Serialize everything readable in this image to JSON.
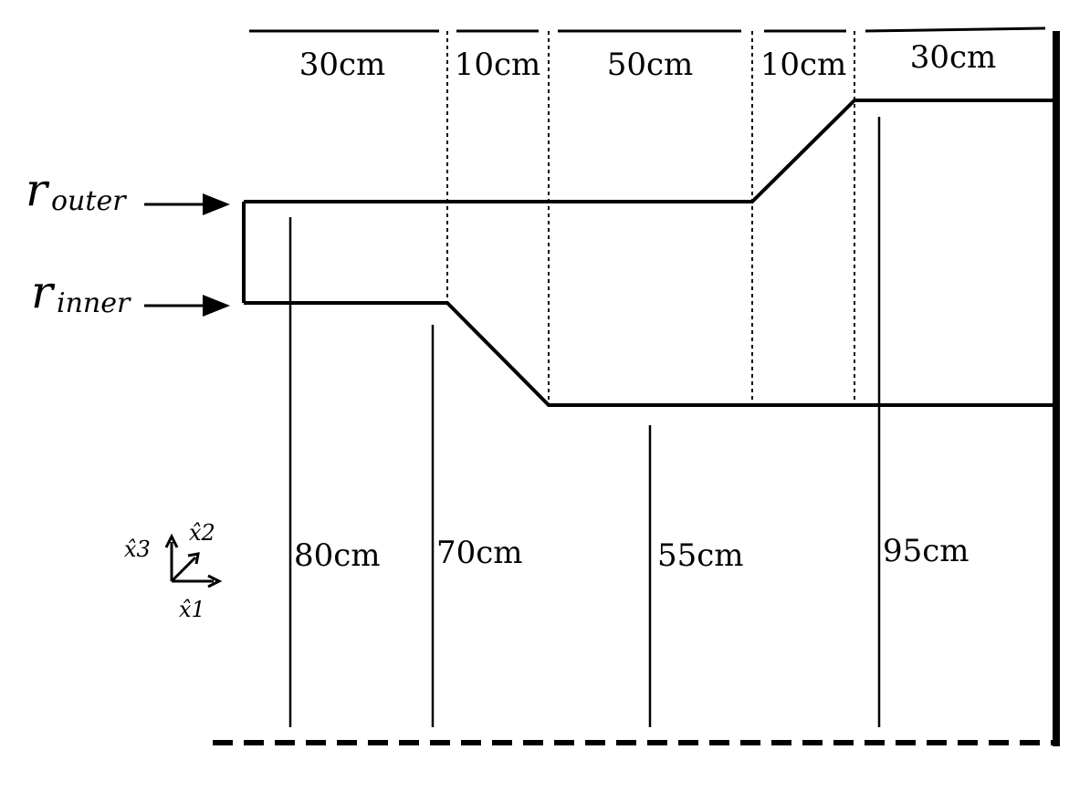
{
  "segments": [
    {
      "label": "30cm"
    },
    {
      "label": "10cm"
    },
    {
      "label": "50cm"
    },
    {
      "label": "10cm"
    },
    {
      "label": "30cm"
    }
  ],
  "radii": [
    {
      "label": "80cm"
    },
    {
      "label": "70cm"
    },
    {
      "label": "55cm"
    },
    {
      "label": "95cm"
    }
  ],
  "r_outer": {
    "symbol": "r",
    "subscript": "outer"
  },
  "r_inner": {
    "symbol": "r",
    "subscript": "inner"
  },
  "axes": {
    "x1": "x̂1",
    "x2": "x̂2",
    "x3": "x̂3"
  }
}
